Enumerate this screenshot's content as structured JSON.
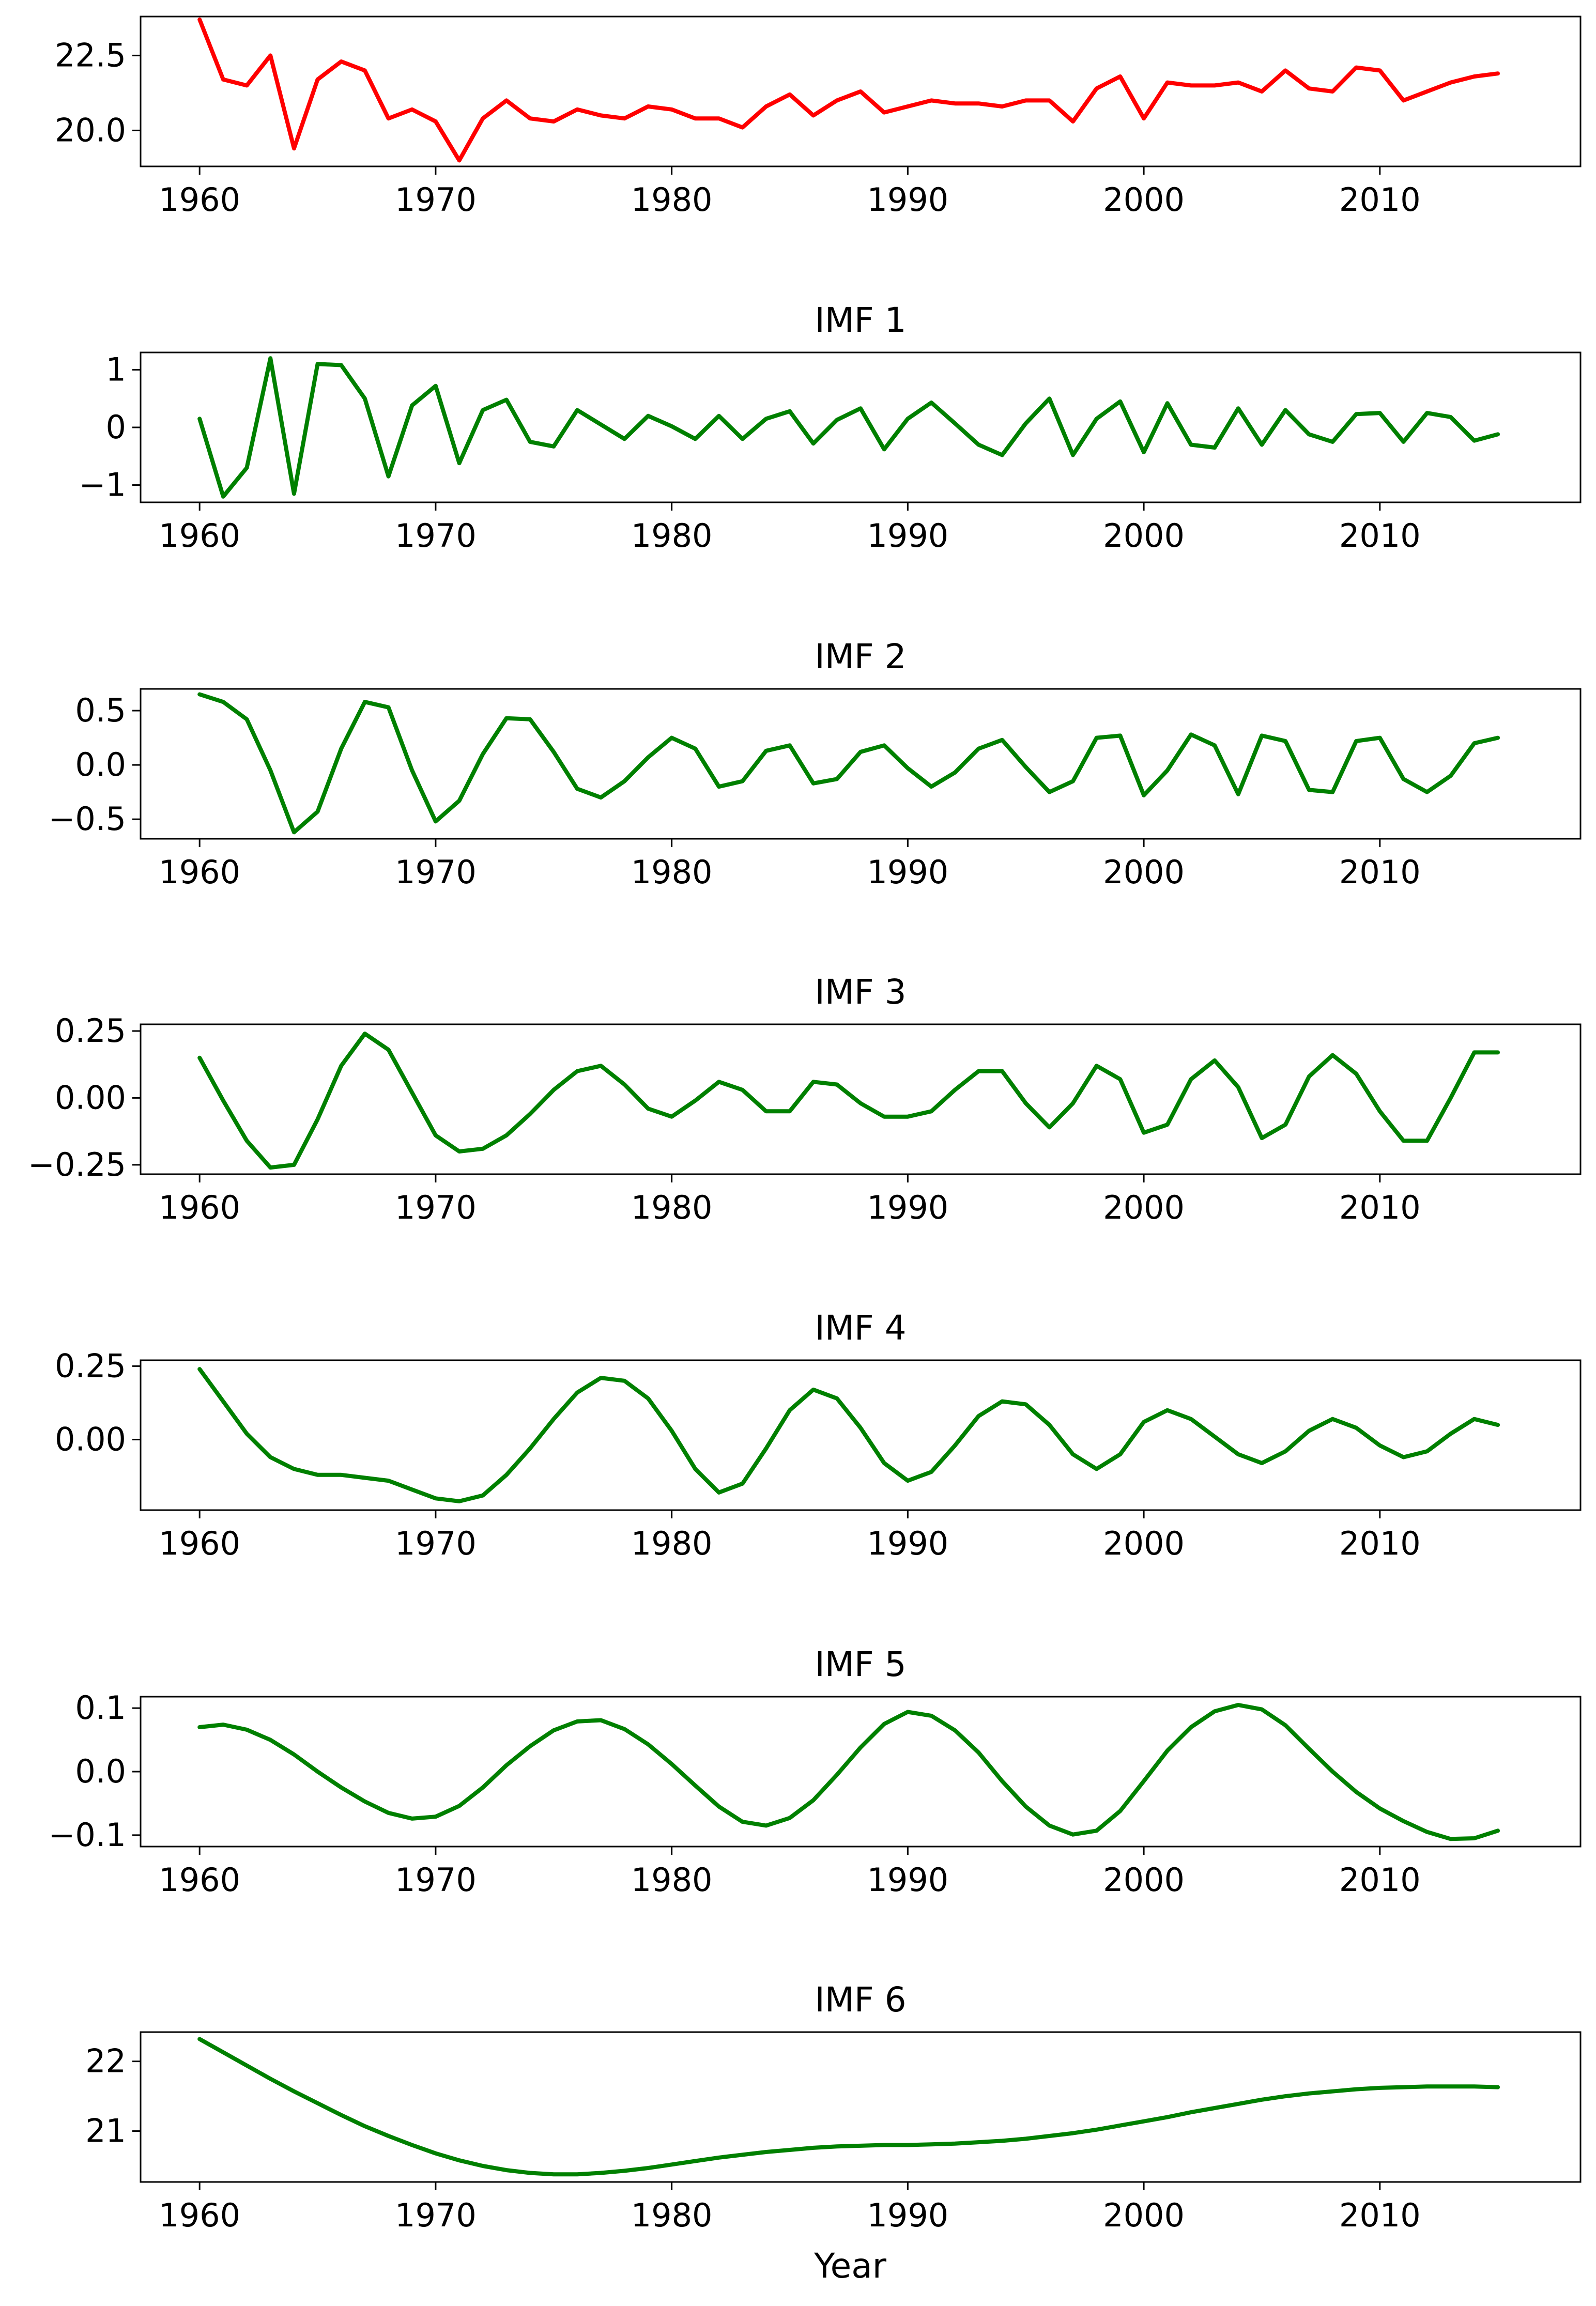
{
  "chart_data": [
    {
      "type": "line",
      "title": "",
      "xlabel": "",
      "ylabel": "",
      "xlim": [
        1957.5,
        2018.5
      ],
      "ylim": [
        18.8,
        23.8
      ],
      "xticks": [
        1960,
        1970,
        1980,
        1990,
        2000,
        2010
      ],
      "yticks": [
        20.0,
        22.5
      ],
      "ytick_labels": [
        "20.0",
        "22.5"
      ],
      "color": "#ff0000",
      "x": [
        1960,
        1961,
        1962,
        1963,
        1964,
        1965,
        1966,
        1967,
        1968,
        1969,
        1970,
        1971,
        1972,
        1973,
        1974,
        1975,
        1976,
        1977,
        1978,
        1979,
        1980,
        1981,
        1982,
        1983,
        1984,
        1985,
        1986,
        1987,
        1988,
        1989,
        1990,
        1991,
        1992,
        1993,
        1994,
        1995,
        1996,
        1997,
        1998,
        1999,
        2000,
        2001,
        2002,
        2003,
        2004,
        2005,
        2006,
        2007,
        2008,
        2009,
        2010,
        2011,
        2012,
        2013,
        2014,
        2015
      ],
      "values": [
        23.7,
        21.7,
        21.5,
        22.5,
        19.4,
        21.7,
        22.3,
        22.0,
        20.4,
        20.7,
        20.3,
        19.0,
        20.4,
        21.0,
        20.4,
        20.3,
        20.7,
        20.5,
        20.4,
        20.8,
        20.7,
        20.4,
        20.4,
        20.1,
        20.8,
        21.2,
        20.5,
        21.0,
        21.3,
        20.6,
        20.8,
        21.0,
        20.9,
        20.9,
        20.8,
        21.0,
        21.0,
        20.3,
        21.4,
        21.8,
        20.4,
        21.6,
        21.5,
        21.5,
        21.6,
        21.3,
        22.0,
        21.4,
        21.3,
        22.1,
        22.0,
        21.0,
        21.3,
        21.6,
        21.8,
        21.9
      ]
    },
    {
      "type": "line",
      "title": "IMF 1",
      "xlabel": "",
      "ylabel": "",
      "xlim": [
        1957.5,
        2018.5
      ],
      "ylim": [
        -1.3,
        1.3
      ],
      "xticks": [
        1960,
        1970,
        1980,
        1990,
        2000,
        2010
      ],
      "yticks": [
        -1,
        0,
        1
      ],
      "ytick_labels": [
        "−1",
        "0",
        "1"
      ],
      "color": "#008000",
      "x": [
        1960,
        1961,
        1962,
        1963,
        1964,
        1965,
        1966,
        1967,
        1968,
        1969,
        1970,
        1971,
        1972,
        1973,
        1974,
        1975,
        1976,
        1977,
        1978,
        1979,
        1980,
        1981,
        1982,
        1983,
        1984,
        1985,
        1986,
        1987,
        1988,
        1989,
        1990,
        1991,
        1992,
        1993,
        1994,
        1995,
        1996,
        1997,
        1998,
        1999,
        2000,
        2001,
        2002,
        2003,
        2004,
        2005,
        2006,
        2007,
        2008,
        2009,
        2010,
        2011,
        2012,
        2013,
        2014,
        2015
      ],
      "values": [
        0.15,
        -1.2,
        -0.7,
        1.2,
        -1.15,
        1.1,
        1.08,
        0.5,
        -0.85,
        0.38,
        0.72,
        -0.62,
        0.3,
        0.48,
        -0.25,
        -0.33,
        0.3,
        0.05,
        -0.2,
        0.2,
        0.02,
        -0.2,
        0.2,
        -0.2,
        0.15,
        0.28,
        -0.28,
        0.13,
        0.33,
        -0.38,
        0.15,
        0.43,
        0.07,
        -0.3,
        -0.48,
        0.07,
        0.5,
        -0.48,
        0.15,
        0.45,
        -0.43,
        0.42,
        -0.3,
        -0.35,
        0.33,
        -0.3,
        0.3,
        -0.12,
        -0.25,
        0.23,
        0.25,
        -0.25,
        0.25,
        0.18,
        -0.23,
        -0.12
      ]
    },
    {
      "type": "line",
      "title": "IMF 2",
      "xlabel": "",
      "ylabel": "",
      "xlim": [
        1957.5,
        2018.5
      ],
      "ylim": [
        -0.68,
        0.7
      ],
      "xticks": [
        1960,
        1970,
        1980,
        1990,
        2000,
        2010
      ],
      "yticks": [
        -0.5,
        0.0,
        0.5
      ],
      "ytick_labels": [
        "−0.5",
        "0.0",
        "0.5"
      ],
      "color": "#008000",
      "x": [
        1960,
        1961,
        1962,
        1963,
        1964,
        1965,
        1966,
        1967,
        1968,
        1969,
        1970,
        1971,
        1972,
        1973,
        1974,
        1975,
        1976,
        1977,
        1978,
        1979,
        1980,
        1981,
        1982,
        1983,
        1984,
        1985,
        1986,
        1987,
        1988,
        1989,
        1990,
        1991,
        1992,
        1993,
        1994,
        1995,
        1996,
        1997,
        1998,
        1999,
        2000,
        2001,
        2002,
        2003,
        2004,
        2005,
        2006,
        2007,
        2008,
        2009,
        2010,
        2011,
        2012,
        2013,
        2014,
        2015
      ],
      "values": [
        0.65,
        0.58,
        0.42,
        -0.05,
        -0.62,
        -0.43,
        0.15,
        0.58,
        0.53,
        -0.05,
        -0.52,
        -0.33,
        0.1,
        0.43,
        0.42,
        0.12,
        -0.22,
        -0.3,
        -0.15,
        0.07,
        0.25,
        0.15,
        -0.2,
        -0.15,
        0.13,
        0.18,
        -0.17,
        -0.13,
        0.12,
        0.18,
        -0.03,
        -0.2,
        -0.07,
        0.15,
        0.23,
        -0.02,
        -0.25,
        -0.15,
        0.25,
        0.27,
        -0.28,
        -0.05,
        0.28,
        0.18,
        -0.27,
        0.27,
        0.22,
        -0.23,
        -0.25,
        0.22,
        0.25,
        -0.13,
        -0.25,
        -0.1,
        0.2,
        0.25
      ]
    },
    {
      "type": "line",
      "title": "IMF 3",
      "xlabel": "",
      "ylabel": "",
      "xlim": [
        1957.5,
        2018.5
      ],
      "ylim": [
        -0.285,
        0.275
      ],
      "xticks": [
        1960,
        1970,
        1980,
        1990,
        2000,
        2010
      ],
      "yticks": [
        -0.25,
        0.0,
        0.25
      ],
      "ytick_labels": [
        "−0.25",
        "0.00",
        "0.25"
      ],
      "color": "#008000",
      "x": [
        1960,
        1961,
        1962,
        1963,
        1964,
        1965,
        1966,
        1967,
        1968,
        1969,
        1970,
        1971,
        1972,
        1973,
        1974,
        1975,
        1976,
        1977,
        1978,
        1979,
        1980,
        1981,
        1982,
        1983,
        1984,
        1985,
        1986,
        1987,
        1988,
        1989,
        1990,
        1991,
        1992,
        1993,
        1994,
        1995,
        1996,
        1997,
        1998,
        1999,
        2000,
        2001,
        2002,
        2003,
        2004,
        2005,
        2006,
        2007,
        2008,
        2009,
        2010,
        2011,
        2012,
        2013,
        2014,
        2015
      ],
      "values": [
        0.15,
        -0.01,
        -0.16,
        -0.26,
        -0.25,
        -0.08,
        0.12,
        0.24,
        0.18,
        0.02,
        -0.14,
        -0.2,
        -0.19,
        -0.14,
        -0.06,
        0.03,
        0.1,
        0.12,
        0.05,
        -0.04,
        -0.07,
        -0.01,
        0.06,
        0.03,
        -0.05,
        -0.05,
        0.06,
        0.05,
        -0.02,
        -0.07,
        -0.07,
        -0.05,
        0.03,
        0.1,
        0.1,
        -0.02,
        -0.11,
        -0.02,
        0.12,
        0.07,
        -0.13,
        -0.1,
        0.07,
        0.14,
        0.04,
        -0.15,
        -0.1,
        0.08,
        0.16,
        0.09,
        -0.05,
        -0.16,
        -0.16,
        0.0,
        0.17,
        0.17
      ]
    },
    {
      "type": "line",
      "title": "IMF 4",
      "xlabel": "",
      "ylabel": "",
      "xlim": [
        1957.5,
        2018.5
      ],
      "ylim": [
        -0.24,
        0.27
      ],
      "xticks": [
        1960,
        1970,
        1980,
        1990,
        2000,
        2010
      ],
      "yticks": [
        0.0,
        0.25
      ],
      "ytick_labels": [
        "0.00",
        "0.25"
      ],
      "color": "#008000",
      "x": [
        1960,
        1961,
        1962,
        1963,
        1964,
        1965,
        1966,
        1967,
        1968,
        1969,
        1970,
        1971,
        1972,
        1973,
        1974,
        1975,
        1976,
        1977,
        1978,
        1979,
        1980,
        1981,
        1982,
        1983,
        1984,
        1985,
        1986,
        1987,
        1988,
        1989,
        1990,
        1991,
        1992,
        1993,
        1994,
        1995,
        1996,
        1997,
        1998,
        1999,
        2000,
        2001,
        2002,
        2003,
        2004,
        2005,
        2006,
        2007,
        2008,
        2009,
        2010,
        2011,
        2012,
        2013,
        2014,
        2015
      ],
      "values": [
        0.24,
        0.13,
        0.02,
        -0.06,
        -0.1,
        -0.12,
        -0.12,
        -0.13,
        -0.14,
        -0.17,
        -0.2,
        -0.21,
        -0.19,
        -0.12,
        -0.03,
        0.07,
        0.16,
        0.21,
        0.2,
        0.14,
        0.03,
        -0.1,
        -0.18,
        -0.15,
        -0.03,
        0.1,
        0.17,
        0.14,
        0.04,
        -0.08,
        -0.14,
        -0.11,
        -0.02,
        0.08,
        0.13,
        0.12,
        0.05,
        -0.05,
        -0.1,
        -0.05,
        0.06,
        0.1,
        0.07,
        0.01,
        -0.05,
        -0.08,
        -0.04,
        0.03,
        0.07,
        0.04,
        -0.02,
        -0.06,
        -0.04,
        0.02,
        0.07,
        0.05
      ]
    },
    {
      "type": "line",
      "title": "IMF 5",
      "xlabel": "",
      "ylabel": "",
      "xlim": [
        1957.5,
        2018.5
      ],
      "ylim": [
        -0.118,
        0.118
      ],
      "xticks": [
        1960,
        1970,
        1980,
        1990,
        2000,
        2010
      ],
      "yticks": [
        -0.1,
        0.0,
        0.1
      ],
      "ytick_labels": [
        "−0.1",
        "0.0",
        "0.1"
      ],
      "color": "#008000",
      "x": [
        1960,
        1961,
        1962,
        1963,
        1964,
        1965,
        1966,
        1967,
        1968,
        1969,
        1970,
        1971,
        1972,
        1973,
        1974,
        1975,
        1976,
        1977,
        1978,
        1979,
        1980,
        1981,
        1982,
        1983,
        1984,
        1985,
        1986,
        1987,
        1988,
        1989,
        1990,
        1991,
        1992,
        1993,
        1994,
        1995,
        1996,
        1997,
        1998,
        1999,
        2000,
        2001,
        2002,
        2003,
        2004,
        2005,
        2006,
        2007,
        2008,
        2009,
        2010,
        2011,
        2012,
        2013,
        2014,
        2015
      ],
      "values": [
        0.07,
        0.074,
        0.066,
        0.05,
        0.027,
        0.0,
        -0.025,
        -0.047,
        -0.065,
        -0.074,
        -0.071,
        -0.054,
        -0.025,
        0.01,
        0.04,
        0.065,
        0.079,
        0.081,
        0.067,
        0.043,
        0.012,
        -0.022,
        -0.055,
        -0.079,
        -0.085,
        -0.073,
        -0.045,
        -0.005,
        0.038,
        0.075,
        0.094,
        0.088,
        0.065,
        0.03,
        -0.015,
        -0.055,
        -0.085,
        -0.099,
        -0.093,
        -0.062,
        -0.015,
        0.033,
        0.07,
        0.095,
        0.105,
        0.098,
        0.073,
        0.036,
        0.0,
        -0.032,
        -0.058,
        -0.078,
        -0.095,
        -0.106,
        -0.105,
        -0.093
      ]
    },
    {
      "type": "line",
      "title": "IMF 6",
      "xlabel": "Year",
      "ylabel": "",
      "xlim": [
        1957.5,
        2018.5
      ],
      "ylim": [
        20.27,
        22.42
      ],
      "xticks": [
        1960,
        1970,
        1980,
        1990,
        2000,
        2010
      ],
      "yticks": [
        21,
        22
      ],
      "ytick_labels": [
        "21",
        "22"
      ],
      "color": "#008000",
      "x": [
        1960,
        1961,
        1962,
        1963,
        1964,
        1965,
        1966,
        1967,
        1968,
        1969,
        1970,
        1971,
        1972,
        1973,
        1974,
        1975,
        1976,
        1977,
        1978,
        1979,
        1980,
        1981,
        1982,
        1983,
        1984,
        1985,
        1986,
        1987,
        1988,
        1989,
        1990,
        1991,
        1992,
        1993,
        1994,
        1995,
        1996,
        1997,
        1998,
        1999,
        2000,
        2001,
        2002,
        2003,
        2004,
        2005,
        2006,
        2007,
        2008,
        2009,
        2010,
        2011,
        2012,
        2013,
        2014,
        2015
      ],
      "values": [
        22.32,
        22.13,
        21.94,
        21.75,
        21.57,
        21.4,
        21.23,
        21.07,
        20.93,
        20.8,
        20.68,
        20.58,
        20.5,
        20.44,
        20.4,
        20.38,
        20.38,
        20.4,
        20.43,
        20.47,
        20.52,
        20.57,
        20.62,
        20.66,
        20.7,
        20.73,
        20.76,
        20.78,
        20.79,
        20.8,
        20.8,
        20.81,
        20.82,
        20.84,
        20.86,
        20.89,
        20.93,
        20.97,
        21.02,
        21.08,
        21.14,
        21.2,
        21.27,
        21.33,
        21.39,
        21.45,
        21.5,
        21.54,
        21.57,
        21.6,
        21.62,
        21.63,
        21.64,
        21.64,
        21.64,
        21.63
      ]
    }
  ]
}
